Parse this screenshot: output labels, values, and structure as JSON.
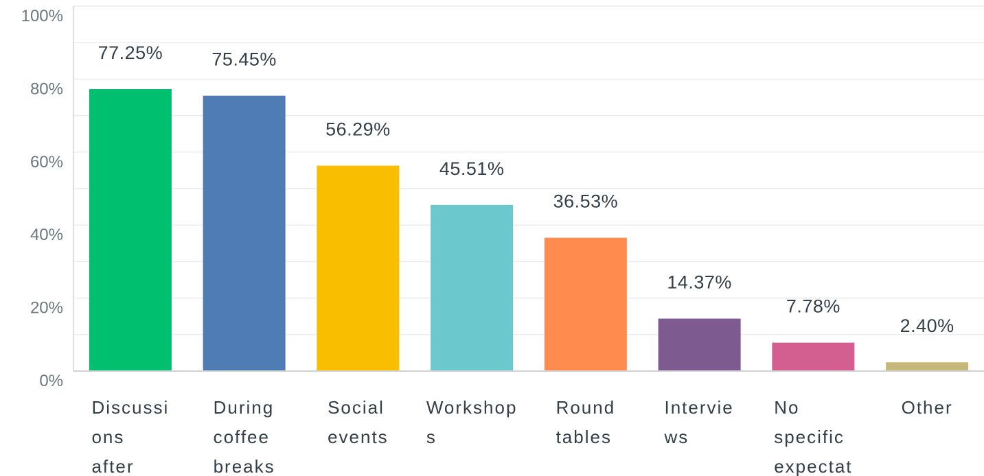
{
  "chart_data": {
    "type": "bar",
    "categories": [
      [
        "Discussi",
        "ons",
        "after"
      ],
      [
        "During",
        "coffee",
        "breaks"
      ],
      [
        "Social",
        "events"
      ],
      [
        "Workshop",
        "s"
      ],
      [
        "Round",
        "tables"
      ],
      [
        "Intervie",
        "ws"
      ],
      [
        "No",
        "specific",
        "expectat"
      ],
      [
        "Other"
      ]
    ],
    "values": [
      77.25,
      75.45,
      56.29,
      45.51,
      36.53,
      14.37,
      7.78,
      2.4
    ],
    "value_labels": [
      "77.25%",
      "75.45%",
      "56.29%",
      "45.51%",
      "36.53%",
      "14.37%",
      "7.78%",
      "2.40%"
    ],
    "colors": [
      "#00bf6f",
      "#507cb6",
      "#f9be00",
      "#6bc8cd",
      "#ff8b4f",
      "#7d5b91",
      "#d25f90",
      "#c8b77a"
    ],
    "ylim": [
      0,
      100
    ],
    "yticks": [
      {
        "value": 0,
        "label": "0%"
      },
      {
        "value": 20,
        "label": "20%"
      },
      {
        "value": 40,
        "label": "40%"
      },
      {
        "value": 60,
        "label": "60%"
      },
      {
        "value": 80,
        "label": "80%"
      },
      {
        "value": 100,
        "label": "100%"
      }
    ],
    "minor_yticks": [
      10,
      30,
      50,
      70,
      90
    ],
    "grid": true
  }
}
